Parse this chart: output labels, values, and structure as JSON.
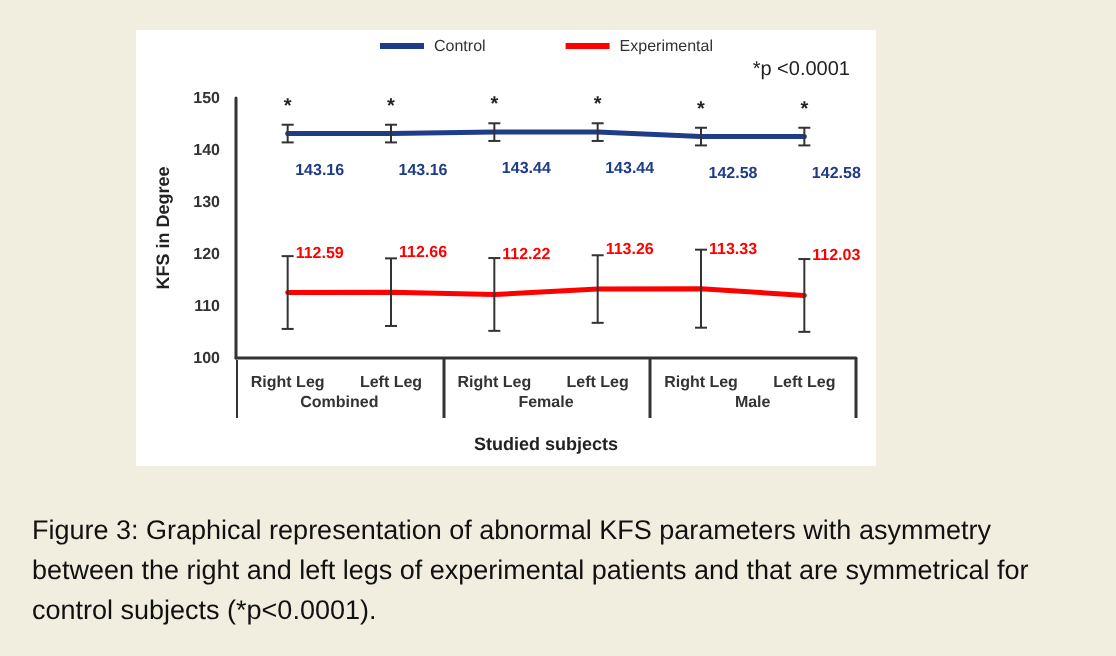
{
  "chart_data": {
    "type": "line",
    "xlabel": "Studied subjects",
    "ylabel": "KFS in Degree",
    "categories": [
      "Right Leg",
      "Left Leg",
      "Right Leg",
      "Left Leg",
      "Right Leg",
      "Left Leg"
    ],
    "series": [
      {
        "name": "Control",
        "color": "#1f3c88",
        "values": [
          143.16,
          143.16,
          143.44,
          143.44,
          142.58,
          142.58
        ],
        "errors": [
          1.7,
          1.7,
          1.7,
          1.7,
          1.7,
          1.7
        ]
      },
      {
        "name": "Experimental",
        "color": "#ff0000",
        "values": [
          112.59,
          112.66,
          112.22,
          113.26,
          113.33,
          112.03
        ],
        "errors": [
          7,
          6.5,
          7,
          6.5,
          7.5,
          7
        ]
      }
    ],
    "ylim": [
      100,
      150
    ],
    "yticks": [
      100,
      110,
      120,
      130,
      140,
      150
    ],
    "data_labels": true,
    "legend": "top",
    "grid": false,
    "marker": "none",
    "line_style": "solid",
    "annotations": [
      "Combined",
      "Female",
      "Male",
      "*p <0.0001",
      "Figure 3: Graphical representation of abnormal KFS parameters with asymmetry between the right and left legs of experimental patients and that are symmetrical for control subjects (*p<0.0001).",
      "*",
      "*",
      "*",
      "*",
      "*",
      "*"
    ]
  }
}
